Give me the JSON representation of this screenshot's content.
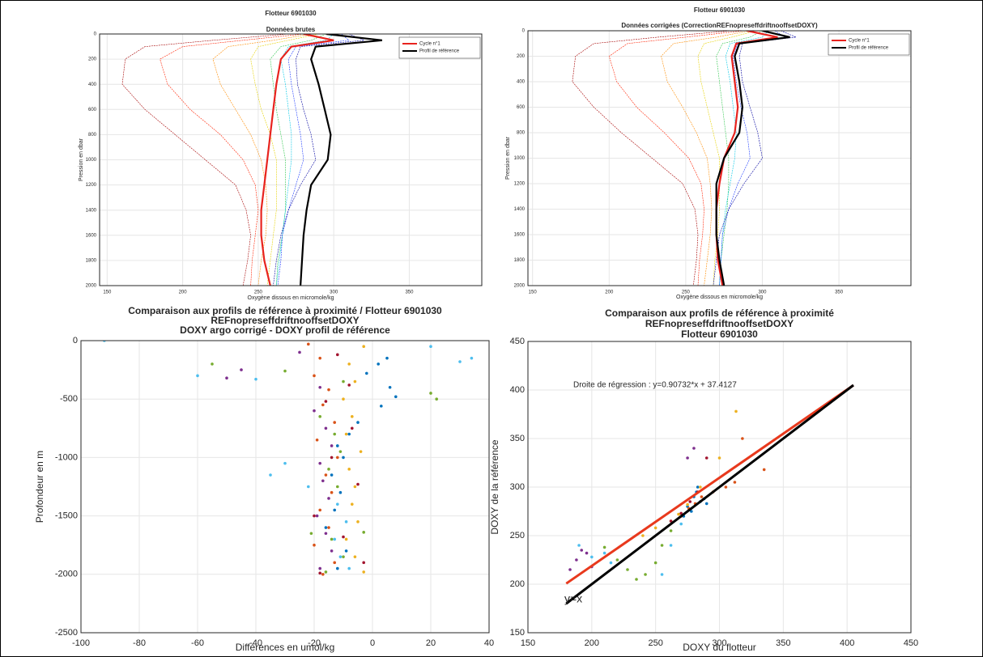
{
  "chart_data": [
    {
      "type": "line",
      "title": [
        "Flotteur 6901030"
      ],
      "subtitle": "Données brutes",
      "xlabel": "Oxygène dissous en micromole/kg",
      "ylabel": "Pression en dbar",
      "xlim": [
        145,
        398
      ],
      "xticks": [
        150,
        200,
        250,
        300,
        350
      ],
      "ylim": [
        2000,
        0
      ],
      "yticks": [
        0,
        200,
        400,
        600,
        800,
        1000,
        1200,
        1400,
        1600,
        1800,
        2000
      ],
      "grid": true,
      "legend": "northeast",
      "y": [
        0,
        50,
        100,
        200,
        400,
        600,
        800,
        1000,
        1200,
        1400,
        1600,
        1800,
        2000
      ],
      "series": [
        {
          "color": "#a50000",
          "values": [
            270,
            220,
            175,
            162,
            160,
            175,
            195,
            215,
            235,
            242,
            245,
            243,
            240
          ]
        },
        {
          "color": "#ff2000",
          "values": [
            280,
            240,
            200,
            185,
            190,
            205,
            225,
            240,
            248,
            250,
            248,
            246,
            245
          ]
        },
        {
          "color": "#ff8c00",
          "values": [
            285,
            260,
            230,
            220,
            225,
            235,
            245,
            252,
            255,
            256,
            255,
            252,
            250
          ]
        },
        {
          "color": "#e6d200",
          "values": [
            290,
            270,
            250,
            245,
            248,
            252,
            258,
            262,
            262,
            262,
            260,
            258,
            256
          ]
        },
        {
          "color": "#32c850",
          "values": [
            295,
            285,
            265,
            258,
            260,
            262,
            265,
            268,
            268,
            268,
            266,
            263,
            262
          ]
        },
        {
          "color": "#00c8e6",
          "values": [
            300,
            295,
            270,
            265,
            268,
            270,
            272,
            272,
            270,
            268,
            266,
            264,
            262
          ]
        },
        {
          "color": "#1e3cff",
          "values": [
            305,
            310,
            275,
            270,
            272,
            275,
            278,
            280,
            275,
            270,
            266,
            265,
            263
          ]
        },
        {
          "color": "#0000a0",
          "values": [
            310,
            320,
            278,
            275,
            276,
            280,
            285,
            288,
            278,
            270,
            265,
            262,
            260
          ]
        },
        {
          "name": "Cycle n°1",
          "color": "#e8231e",
          "values": [
            280,
            300,
            272,
            265,
            262,
            260,
            258,
            256,
            254,
            252,
            252,
            254,
            258
          ]
        },
        {
          "name": "Profil de référence",
          "color": "#000000",
          "values": [
            295,
            332,
            288,
            285,
            290,
            294,
            298,
            296,
            285,
            282,
            280,
            279,
            278
          ]
        }
      ]
    },
    {
      "type": "line",
      "title": [
        "Flotteur 6901030"
      ],
      "subtitle": "Données corrigées (CorrectionREFnopreseffdriftnooffsetDOXY)",
      "xlabel": "Oxygène dissous en micromole/kg",
      "ylabel": "Pression en dbar",
      "xlim": [
        147,
        397
      ],
      "xticks": [
        150,
        200,
        250,
        300,
        350
      ],
      "ylim": [
        2000,
        0
      ],
      "yticks": [
        0,
        200,
        400,
        600,
        800,
        1000,
        1200,
        1400,
        1600,
        1800,
        2000
      ],
      "grid": true,
      "legend": "northeast",
      "y": [
        0,
        50,
        100,
        200,
        400,
        600,
        800,
        1000,
        1200,
        1400,
        1600,
        1800,
        2000
      ],
      "series": [
        {
          "color": "#a50000",
          "values": [
            280,
            232,
            190,
            178,
            176,
            190,
            208,
            228,
            248,
            256,
            258,
            257,
            255
          ]
        },
        {
          "color": "#ff2000",
          "values": [
            288,
            250,
            212,
            200,
            205,
            218,
            236,
            252,
            260,
            262,
            261,
            259,
            258
          ]
        },
        {
          "color": "#ff8c00",
          "values": [
            292,
            270,
            242,
            234,
            238,
            248,
            257,
            264,
            266,
            267,
            266,
            264,
            262
          ]
        },
        {
          "color": "#e6d200",
          "values": [
            296,
            280,
            262,
            258,
            260,
            264,
            268,
            272,
            272,
            272,
            271,
            269,
            268
          ]
        },
        {
          "color": "#32c850",
          "values": [
            300,
            292,
            274,
            270,
            272,
            274,
            276,
            278,
            278,
            277,
            275,
            273,
            272
          ]
        },
        {
          "color": "#00c8e6",
          "values": [
            304,
            300,
            279,
            276,
            279,
            281,
            283,
            282,
            279,
            276,
            274,
            273,
            272
          ]
        },
        {
          "color": "#1e3cff",
          "values": [
            308,
            315,
            284,
            281,
            283,
            286,
            290,
            292,
            284,
            278,
            274,
            273,
            272
          ]
        },
        {
          "color": "#0000a0",
          "values": [
            312,
            322,
            287,
            285,
            287,
            292,
            297,
            300,
            288,
            278,
            272,
            270,
            268
          ]
        },
        {
          "name": "Cycle n°1",
          "color": "#e8231e",
          "values": [
            290,
            310,
            283,
            280,
            282,
            284,
            282,
            275,
            272,
            270,
            270,
            271,
            274
          ]
        },
        {
          "name": "Profil de référence",
          "color": "#000000",
          "values": [
            300,
            318,
            285,
            282,
            285,
            287,
            285,
            275,
            270,
            270,
            270,
            272,
            275
          ]
        }
      ]
    },
    {
      "type": "scatter",
      "title": [
        "Comparaison aux profils de référence à proximité / Flotteur 6901030",
        "REFnopreseffdriftnooffsetDOXY",
        "DOXY argo corrigé - DOXY profil de référence"
      ],
      "xlabel": "Différences en umol/kg",
      "ylabel": "Profondeur en m",
      "xlim": [
        -100,
        40
      ],
      "xticks": [
        -100,
        -80,
        -60,
        -40,
        -20,
        0,
        20,
        40
      ],
      "ylim": [
        -2500,
        0
      ],
      "yticks": [
        -2500,
        -2000,
        -1500,
        -1000,
        -500,
        0
      ],
      "grid": true,
      "series": [
        {
          "color": "#0072bd",
          "x": [
            5,
            2,
            -2,
            6,
            8,
            3,
            -5,
            -8,
            -12,
            -10,
            -14,
            -11,
            -13,
            -16,
            -9,
            -12
          ],
          "values": [
            -150,
            -200,
            -280,
            -400,
            -480,
            -560,
            -700,
            -800,
            -900,
            -1000,
            -1150,
            -1300,
            -1450,
            -1600,
            -1800,
            -1950
          ]
        },
        {
          "color": "#d95319",
          "x": [
            -22,
            -18,
            -20,
            -15,
            -17,
            -13,
            -19,
            -12,
            -16,
            -14,
            -18,
            -15,
            -20,
            -13,
            -17
          ],
          "values": [
            -30,
            -150,
            -300,
            -420,
            -550,
            -700,
            -850,
            -1000,
            -1150,
            -1300,
            -1450,
            -1600,
            -1750,
            -1900,
            -2000
          ]
        },
        {
          "color": "#edb120",
          "x": [
            -3,
            -8,
            -6,
            -10,
            -7,
            -9,
            -4,
            -8,
            -6,
            -7,
            -5,
            -9,
            -6,
            -3
          ],
          "values": [
            -50,
            -200,
            -350,
            -500,
            -650,
            -800,
            -950,
            -1100,
            -1250,
            -1400,
            -1550,
            -1700,
            -1850,
            -1980
          ]
        },
        {
          "color": "#7e2f8e",
          "x": [
            -25,
            -45,
            -50,
            -18,
            -20,
            -16,
            -14,
            -18,
            -17,
            -15,
            -19,
            -16,
            -14,
            -18
          ],
          "values": [
            -100,
            -250,
            -320,
            -400,
            -600,
            -750,
            -900,
            -1050,
            -1200,
            -1350,
            -1500,
            -1650,
            -1800,
            -1950
          ]
        },
        {
          "color": "#77ac30",
          "x": [
            -55,
            -30,
            -10,
            20,
            22,
            -18,
            -13,
            -11,
            -15,
            -12,
            -21,
            -14,
            -10,
            -16,
            -3
          ],
          "values": [
            -200,
            -260,
            -350,
            -450,
            -500,
            -650,
            -800,
            -950,
            -1100,
            -1250,
            -1650,
            -1700,
            -1850,
            -1980,
            -1640
          ]
        },
        {
          "color": "#4dbeee",
          "x": [
            -92,
            -60,
            -40,
            20,
            34,
            30,
            -30,
            -35,
            -22,
            -12,
            -9,
            -13,
            -11,
            -8
          ],
          "values": [
            0,
            -300,
            -330,
            -50,
            -150,
            -180,
            -1050,
            -1150,
            -1250,
            -1400,
            -1550,
            -1700,
            -1850,
            -1950
          ]
        },
        {
          "color": "#a2142f",
          "x": [
            -12,
            -8,
            -16,
            -7,
            -14,
            -5,
            -20,
            -10,
            -3,
            -18
          ],
          "values": [
            -120,
            -380,
            -520,
            -750,
            -1000,
            -1230,
            -1500,
            -1680,
            -1900,
            -1990
          ]
        }
      ]
    },
    {
      "type": "scatter",
      "title": [
        "Comparaison aux profils de référence à proximité",
        "REFnopreseffdriftnooffsetDOXY",
        "Flotteur 6901030"
      ],
      "xlabel": "DOXY du flotteur",
      "ylabel": "DOXY de la référence",
      "xlim": [
        150,
        450
      ],
      "xticks": [
        150,
        200,
        250,
        300,
        350,
        400,
        450
      ],
      "ylim": [
        150,
        450
      ],
      "yticks": [
        150,
        200,
        250,
        300,
        350,
        400,
        450
      ],
      "grid": true,
      "annotations": [
        {
          "text": "Droite de régression : y=0.90732*x + 37.4127",
          "color": "#e8391d"
        },
        {
          "text": "y=x",
          "color": "#000000"
        }
      ],
      "series": [
        {
          "color": "#0072bd",
          "x": [
            275,
            280,
            285,
            282,
            288,
            290,
            283,
            278,
            272
          ],
          "values": [
            280,
            290,
            285,
            295,
            288,
            283,
            300,
            275,
            270
          ]
        },
        {
          "color": "#d95319",
          "x": [
            270,
            276,
            281,
            286,
            295,
            305,
            312,
            318,
            335
          ],
          "values": [
            270,
            278,
            283,
            290,
            295,
            300,
            305,
            350,
            318
          ]
        },
        {
          "color": "#edb120",
          "x": [
            240,
            250,
            262,
            268,
            275,
            285,
            300,
            313
          ],
          "values": [
            250,
            258,
            265,
            272,
            282,
            300,
            330,
            378
          ]
        },
        {
          "color": "#7e2f8e",
          "x": [
            183,
            188,
            192,
            196,
            200,
            275,
            280
          ],
          "values": [
            215,
            225,
            235,
            232,
            218,
            330,
            340
          ]
        },
        {
          "color": "#77ac30",
          "x": [
            210,
            220,
            228,
            235,
            242,
            250,
            255,
            262
          ],
          "values": [
            238,
            225,
            215,
            205,
            210,
            222,
            240,
            255
          ]
        },
        {
          "color": "#4dbeee",
          "x": [
            190,
            200,
            210,
            215,
            255,
            262,
            270
          ],
          "values": [
            240,
            228,
            232,
            222,
            210,
            240,
            262
          ]
        },
        {
          "color": "#a2142f",
          "x": [
            262,
            270,
            277,
            283,
            290
          ],
          "values": [
            265,
            273,
            285,
            295,
            330
          ]
        },
        {
          "style": "line",
          "color": "#e8391d",
          "x": [
            180,
            405
          ],
          "values": [
            200.7,
            404.9
          ]
        },
        {
          "style": "line",
          "color": "#000000",
          "x": [
            180,
            405
          ],
          "values": [
            180,
            405
          ]
        }
      ]
    }
  ]
}
